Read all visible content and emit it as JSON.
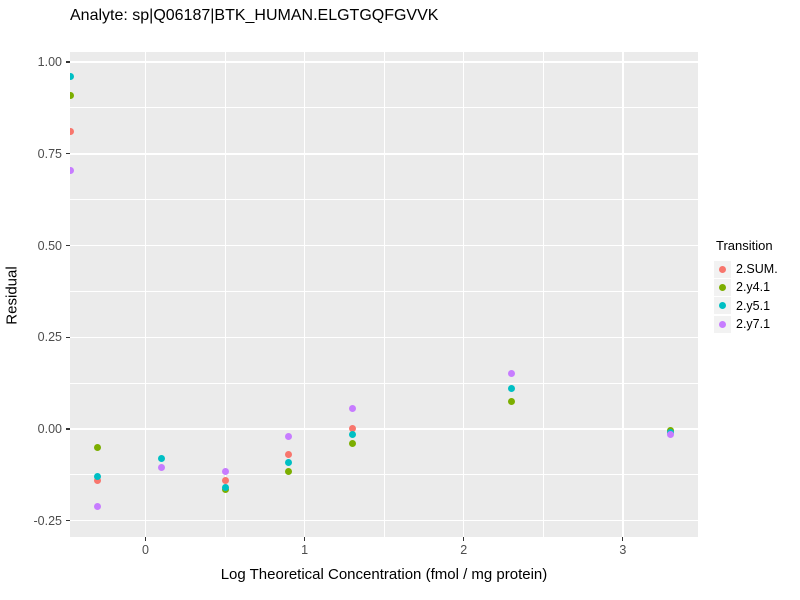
{
  "chart_data": {
    "type": "scatter",
    "title": "Analyte: sp|Q06187|BTK_HUMAN.ELGTGQFGVVK",
    "xlabel": "Log Theoretical Concentration (fmol / mg protein)",
    "ylabel": "Residual",
    "xlim": [
      -0.4745,
      3.4723
    ],
    "ylim": [
      -0.2943,
      1.0273
    ],
    "grid": true,
    "panel_bg": "#EBEBEB",
    "grid_color": "#FFFFFF",
    "tick_label_color": "#4D4D4D",
    "x_ticks": [
      {
        "v": 0,
        "label": "0"
      },
      {
        "v": 1,
        "label": "1"
      },
      {
        "v": 2,
        "label": "2"
      },
      {
        "v": 3,
        "label": "3"
      }
    ],
    "y_ticks": [
      {
        "v": 1.0,
        "label": "1.00"
      },
      {
        "v": 0.75,
        "label": "0.75"
      },
      {
        "v": 0.5,
        "label": "0.50"
      },
      {
        "v": 0.25,
        "label": "0.25"
      },
      {
        "v": 0.0,
        "label": "0.00"
      },
      {
        "v": -0.25,
        "label": "-0.25"
      }
    ],
    "x_minor": [
      0.5,
      1.5,
      2.5
    ],
    "y_minor": [
      0.875,
      0.625,
      0.375,
      0.125,
      -0.125
    ],
    "legend_title": "Transition",
    "legend_position": "right",
    "series": [
      {
        "name": "2.SUM.",
        "color": "#F8766D",
        "points": [
          [
            -0.47,
            0.81
          ],
          [
            -0.3,
            -0.14
          ],
          [
            0.5,
            -0.14
          ],
          [
            0.9,
            -0.07
          ],
          [
            1.3,
            0.0
          ]
        ]
      },
      {
        "name": "2.y4.1",
        "color": "#7CAE00",
        "points": [
          [
            -0.47,
            0.91
          ],
          [
            -0.3,
            -0.05
          ],
          [
            0.5,
            -0.165
          ],
          [
            0.9,
            -0.115
          ],
          [
            1.3,
            -0.04
          ],
          [
            2.3,
            0.075
          ],
          [
            3.3,
            -0.005
          ]
        ]
      },
      {
        "name": "2.y5.1",
        "color": "#00BFC4",
        "points": [
          [
            -0.47,
            0.96
          ],
          [
            -0.3,
            -0.13
          ],
          [
            0.1,
            -0.08
          ],
          [
            0.5,
            -0.16
          ],
          [
            0.9,
            -0.09
          ],
          [
            1.3,
            -0.015
          ],
          [
            2.3,
            0.11
          ],
          [
            3.3,
            -0.01
          ]
        ]
      },
      {
        "name": "2.y7.1",
        "color": "#C77CFF",
        "points": [
          [
            -0.47,
            0.705
          ],
          [
            -0.3,
            -0.21
          ],
          [
            0.1,
            -0.105
          ],
          [
            0.5,
            -0.115
          ],
          [
            0.9,
            -0.02
          ],
          [
            1.3,
            0.055
          ],
          [
            2.3,
            0.15
          ],
          [
            3.3,
            -0.015
          ]
        ]
      }
    ]
  }
}
